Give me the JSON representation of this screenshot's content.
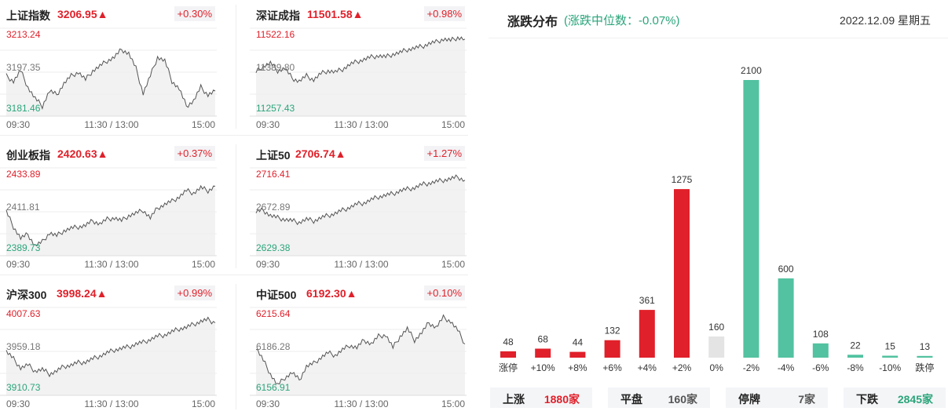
{
  "panels": [
    {
      "name": "上证指数",
      "value": "3206.95▲",
      "change": "+0.30%",
      "high": "3213.24",
      "mid": "3197.35",
      "low": "3181.46",
      "times": [
        "09:30",
        "11:30 / 13:00",
        "15:00"
      ]
    },
    {
      "name": "深证成指",
      "value": "11501.58▲",
      "change": "+0.98%",
      "high": "11522.16",
      "mid": "11389.80",
      "low": "11257.43",
      "times": [
        "09:30",
        "11:30 / 13:00",
        "15:00"
      ]
    },
    {
      "name": "创业板指",
      "value": "2420.63▲",
      "change": "+0.37%",
      "high": "2433.89",
      "mid": "2411.81",
      "low": "2389.73",
      "times": [
        "09:30",
        "11:30 / 13:00",
        "15:00"
      ]
    },
    {
      "name": "上证50",
      "value": "2706.74▲",
      "change": "+1.27%",
      "high": "2716.41",
      "mid": "2672.89",
      "low": "2629.38",
      "times": [
        "09:30",
        "11:30 / 13:00",
        "15:00"
      ]
    },
    {
      "name": "沪深300",
      "value": "3998.24▲",
      "change": "+0.99%",
      "high": "4007.63",
      "mid": "3959.18",
      "low": "3910.73",
      "times": [
        "09:30",
        "11:30 / 13:00",
        "15:00"
      ]
    },
    {
      "name": "中证500",
      "value": "6192.30▲",
      "change": "+0.10%",
      "high": "6215.64",
      "mid": "6186.28",
      "low": "6156.91",
      "times": [
        "09:30",
        "11:30 / 13:00",
        "15:00"
      ]
    }
  ],
  "distribution": {
    "title": "涨跌分布",
    "median": "(涨跌中位数：-0.07%)",
    "date": "2022.12.09 星期五"
  },
  "colors": {
    "up": "#e0202a",
    "down": "#52c2a0",
    "flat": "#e4e4e4"
  },
  "chart_data": {
    "type": "bar",
    "categories": [
      "涨停",
      "+10%",
      "+8%",
      "+6%",
      "+4%",
      "+2%",
      "0%",
      "-2%",
      "-4%",
      "-6%",
      "-8%",
      "-10%",
      "跌停"
    ],
    "values": [
      48,
      68,
      44,
      132,
      361,
      1275,
      160,
      2100,
      600,
      108,
      22,
      15,
      13
    ],
    "colors": [
      "up",
      "up",
      "up",
      "up",
      "up",
      "up",
      "flat",
      "down",
      "down",
      "down",
      "down",
      "down",
      "down"
    ],
    "title": "涨跌分布",
    "ylim": [
      0,
      2100
    ]
  },
  "stats": [
    {
      "label": "上涨",
      "value": "1880家",
      "color": "#e0202a"
    },
    {
      "label": "平盘",
      "value": "160家",
      "color": "#555555"
    },
    {
      "label": "停牌",
      "value": "7家",
      "color": "#555555"
    },
    {
      "label": "下跌",
      "value": "2845家",
      "color": "#2aa57a"
    }
  ]
}
